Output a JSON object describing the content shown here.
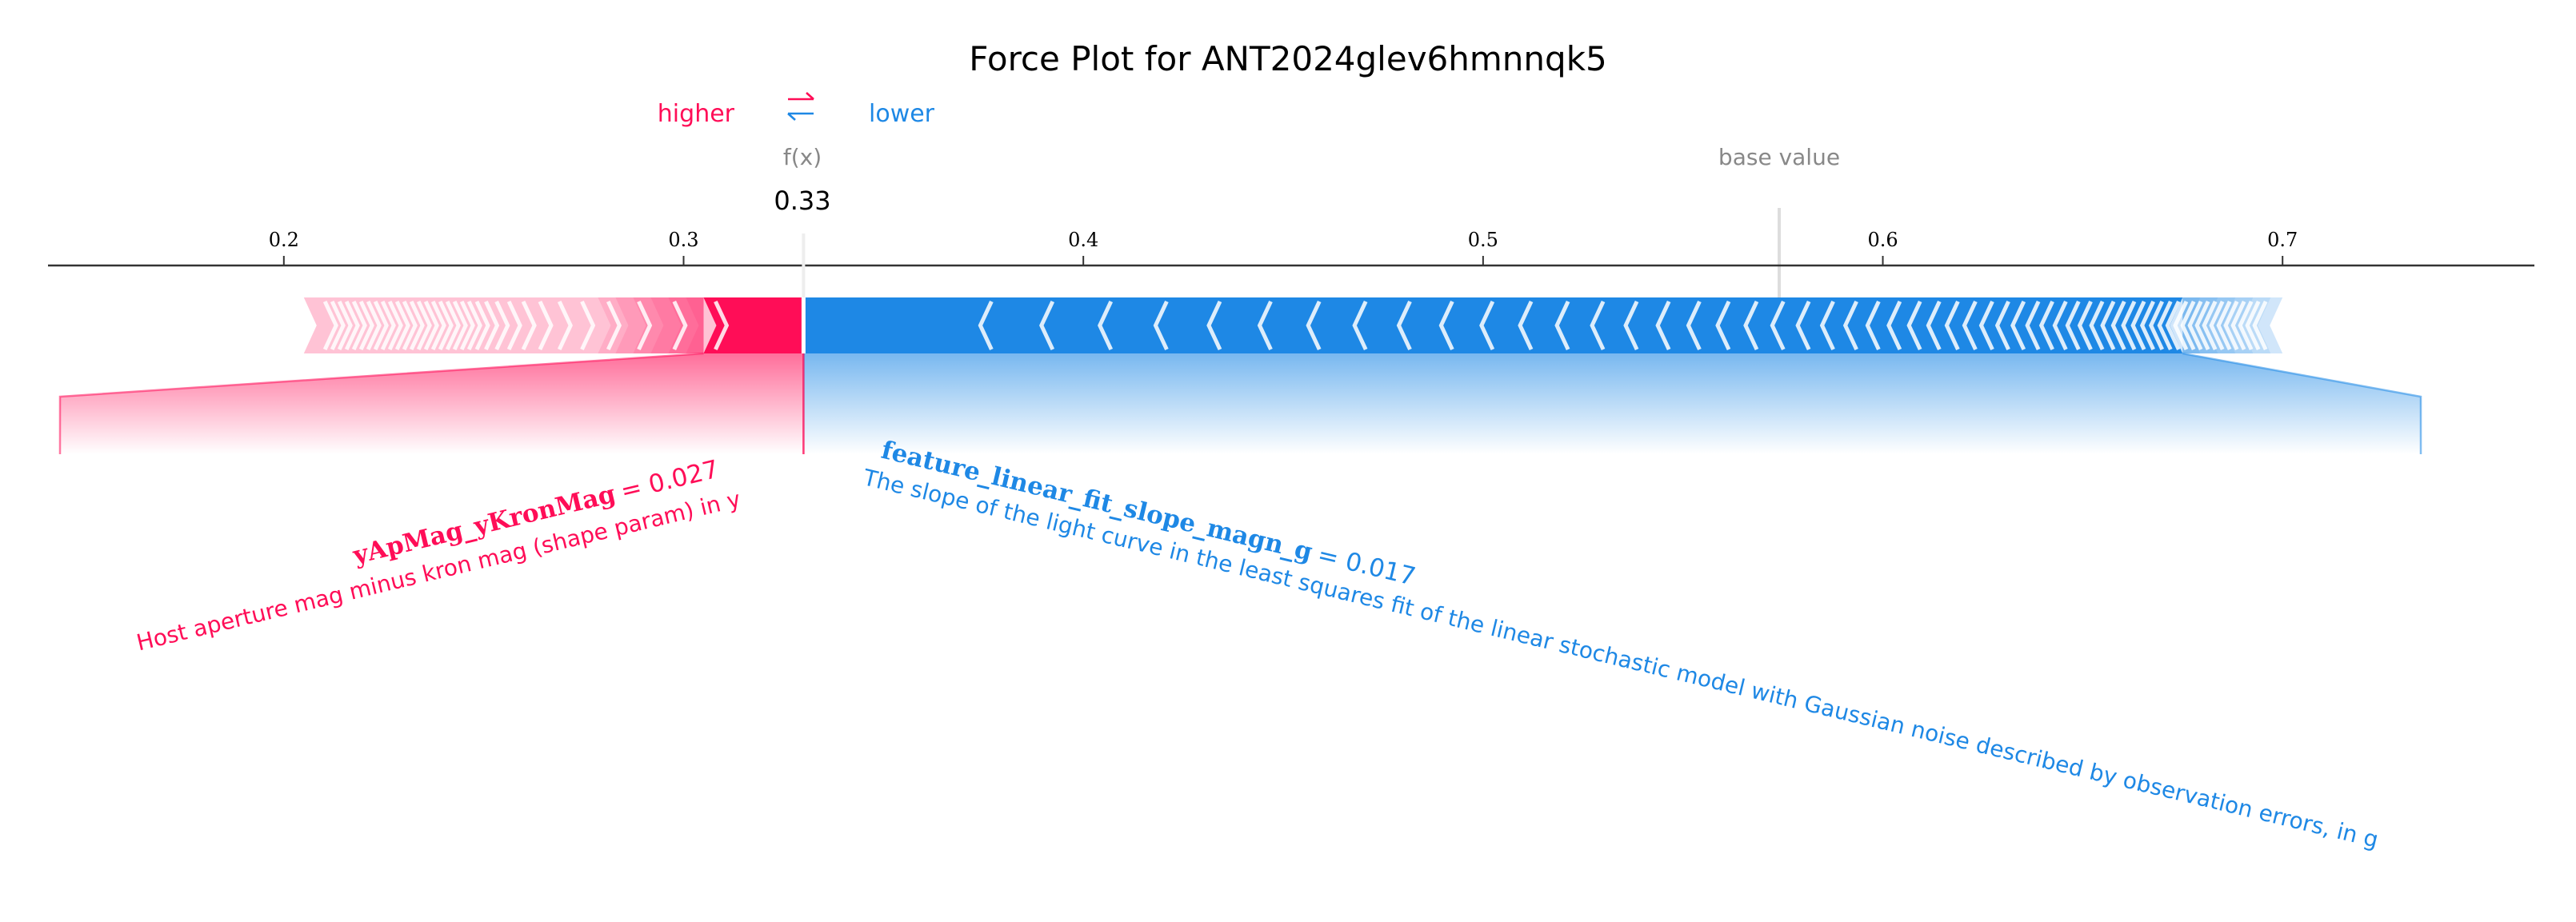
{
  "title": "Force Plot for ANT2024glev6hmnnqk5",
  "legend": {
    "higher_label": "higher",
    "lower_label": "lower",
    "arrows_icon": "left-right-arrows-icon"
  },
  "colors": {
    "positive": "#ff0d57",
    "negative": "#1e88e5",
    "positive_light": "#ffc3d5",
    "negative_light": "#d1e6fa",
    "axis": "#333333",
    "grey_text": "#888888",
    "base_line": "#dddddd"
  },
  "labels": {
    "fx_label": "f(x)",
    "fx_value": "0.33",
    "base_value_label": "base value"
  },
  "features": [
    {
      "name": "yApMag_yKronMag",
      "value_text": "= 0.027",
      "description": "Host aperture mag minus kron mag (shape param) in y",
      "effect": "higher"
    },
    {
      "name": "feature_linear_fit_slope_magn_g",
      "value_text": "= 0.017",
      "description": "The slope of the light curve in the least squares fit of the linear stochastic model with Gaussian noise described by observation errors, in g",
      "effect": "lower"
    }
  ],
  "chart_data": {
    "type": "force",
    "title": "Force Plot for ANT2024glev6hmnnqk5",
    "xlim": [
      0.141,
      0.763
    ],
    "x_ticks": [
      0.2,
      0.3,
      0.4,
      0.5,
      0.6,
      0.7
    ],
    "x_tick_labels": [
      "0.2",
      "0.3",
      "0.4",
      "0.5",
      "0.6",
      "0.7"
    ],
    "output_value": 0.33,
    "base_value": 0.575,
    "positive_segment": {
      "from": 0.205,
      "to": 0.33,
      "strong_from": 0.305
    },
    "negative_segment": {
      "from": 0.33,
      "to": 0.7,
      "strong_to": 0.675
    },
    "focus_feature": {
      "positive": {
        "range": [
          0.305,
          0.33
        ],
        "label": "yApMag_yKronMag"
      },
      "negative": {
        "range": [
          0.33,
          0.675
        ],
        "label": "feature_linear_fit_slope_magn_g"
      }
    },
    "grid": false
  }
}
